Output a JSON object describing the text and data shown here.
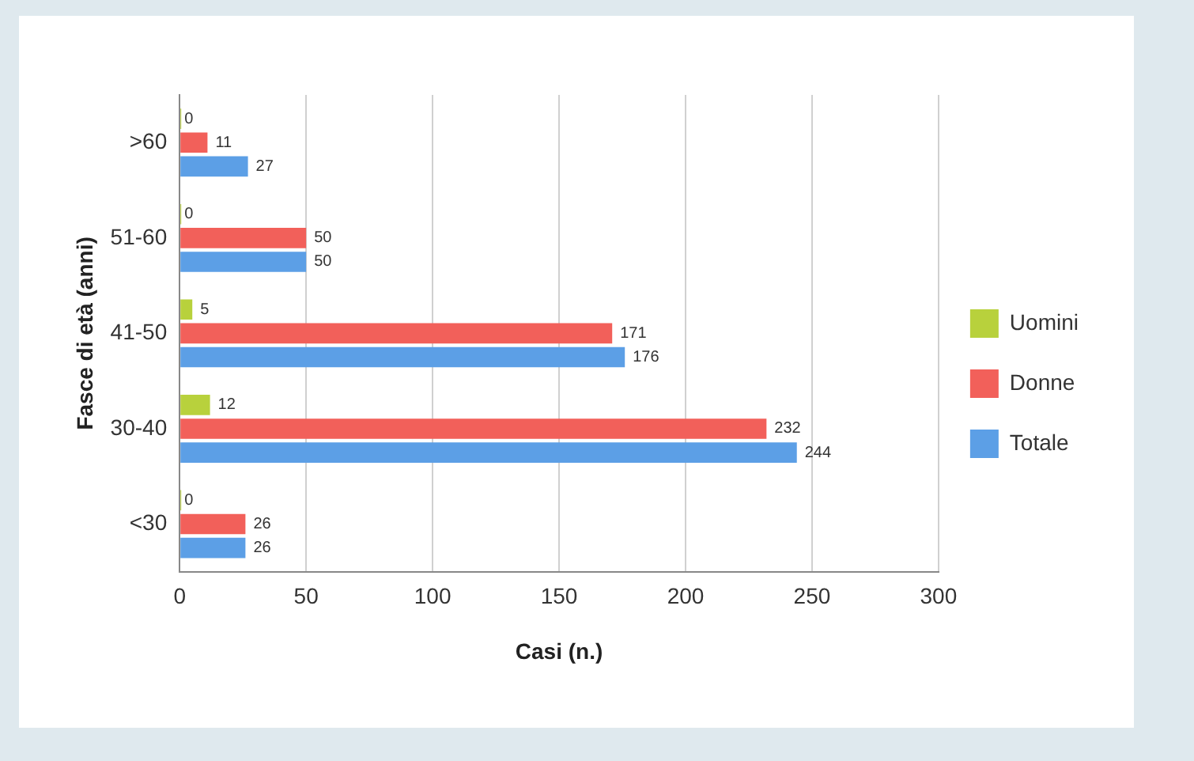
{
  "chart_data": {
    "type": "bar",
    "orientation": "horizontal",
    "xlabel": "Casi (n.)",
    "ylabel": "Fasce di età (anni)",
    "categories": [
      ">60",
      "51-60",
      "41-50",
      "30-40",
      "<30"
    ],
    "series": [
      {
        "name": "Uomini",
        "color": "#b8d13c",
        "values": [
          0,
          0,
          5,
          12,
          0
        ]
      },
      {
        "name": "Donne",
        "color": "#f2605a",
        "values": [
          11,
          50,
          171,
          232,
          26
        ]
      },
      {
        "name": "Totale",
        "color": "#5c9fe6",
        "values": [
          27,
          50,
          176,
          244,
          26
        ]
      }
    ],
    "xlim": [
      0,
      300
    ],
    "xticks": [
      0,
      50,
      100,
      150,
      200,
      250,
      300
    ],
    "grid": "x",
    "legend": "right",
    "data_labels": true
  }
}
